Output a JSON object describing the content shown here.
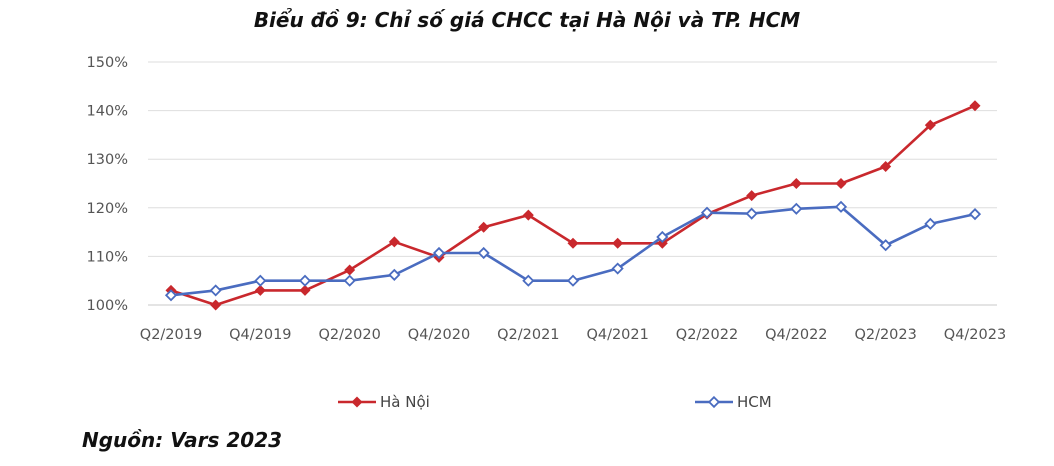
{
  "chart_data": {
    "type": "line",
    "title": "Biểu đồ 9: Chỉ số giá CHCC tại Hà Nội và TP. HCM",
    "xlabel": "",
    "ylabel": "",
    "ylim": [
      100,
      150
    ],
    "yticks": [
      "100%",
      "110%",
      "120%",
      "130%",
      "140%",
      "150%"
    ],
    "x": [
      "Q2/2019",
      "Q3/2019",
      "Q4/2019",
      "Q1/2020",
      "Q2/2020",
      "Q3/2020",
      "Q4/2020",
      "Q1/2021",
      "Q2/2021",
      "Q3/2021",
      "Q4/2021",
      "Q1/2022",
      "Q2/2022",
      "Q3/2022",
      "Q4/2022",
      "Q1/2023",
      "Q2/2023",
      "Q3/2023",
      "Q4/2023"
    ],
    "xtick_labels": [
      "Q2/2019",
      "Q4/2019",
      "Q2/2020",
      "Q4/2020",
      "Q2/2021",
      "Q4/2021",
      "Q2/2022",
      "Q4/2022",
      "Q2/2023",
      "Q4/2023"
    ],
    "grid": true,
    "legend_position": "bottom",
    "series": [
      {
        "name": "Hà Nội",
        "color": "#c9282d",
        "marker": "diamond-filled",
        "values": [
          103,
          100,
          103,
          103,
          107.2,
          113,
          109.8,
          116,
          118.5,
          112.7,
          112.7,
          112.7,
          118.7,
          122.5,
          125,
          125,
          128.5,
          137,
          141
        ]
      },
      {
        "name": "HCM",
        "color": "#4a6cc0",
        "marker": "diamond-open",
        "values": [
          102,
          103,
          105,
          105,
          105,
          106.2,
          110.7,
          110.7,
          105,
          105,
          107.5,
          114,
          119,
          118.8,
          119.8,
          120.2,
          112.3,
          116.7,
          118.7
        ]
      }
    ]
  },
  "source_note": "Nguồn: Vars 2023"
}
